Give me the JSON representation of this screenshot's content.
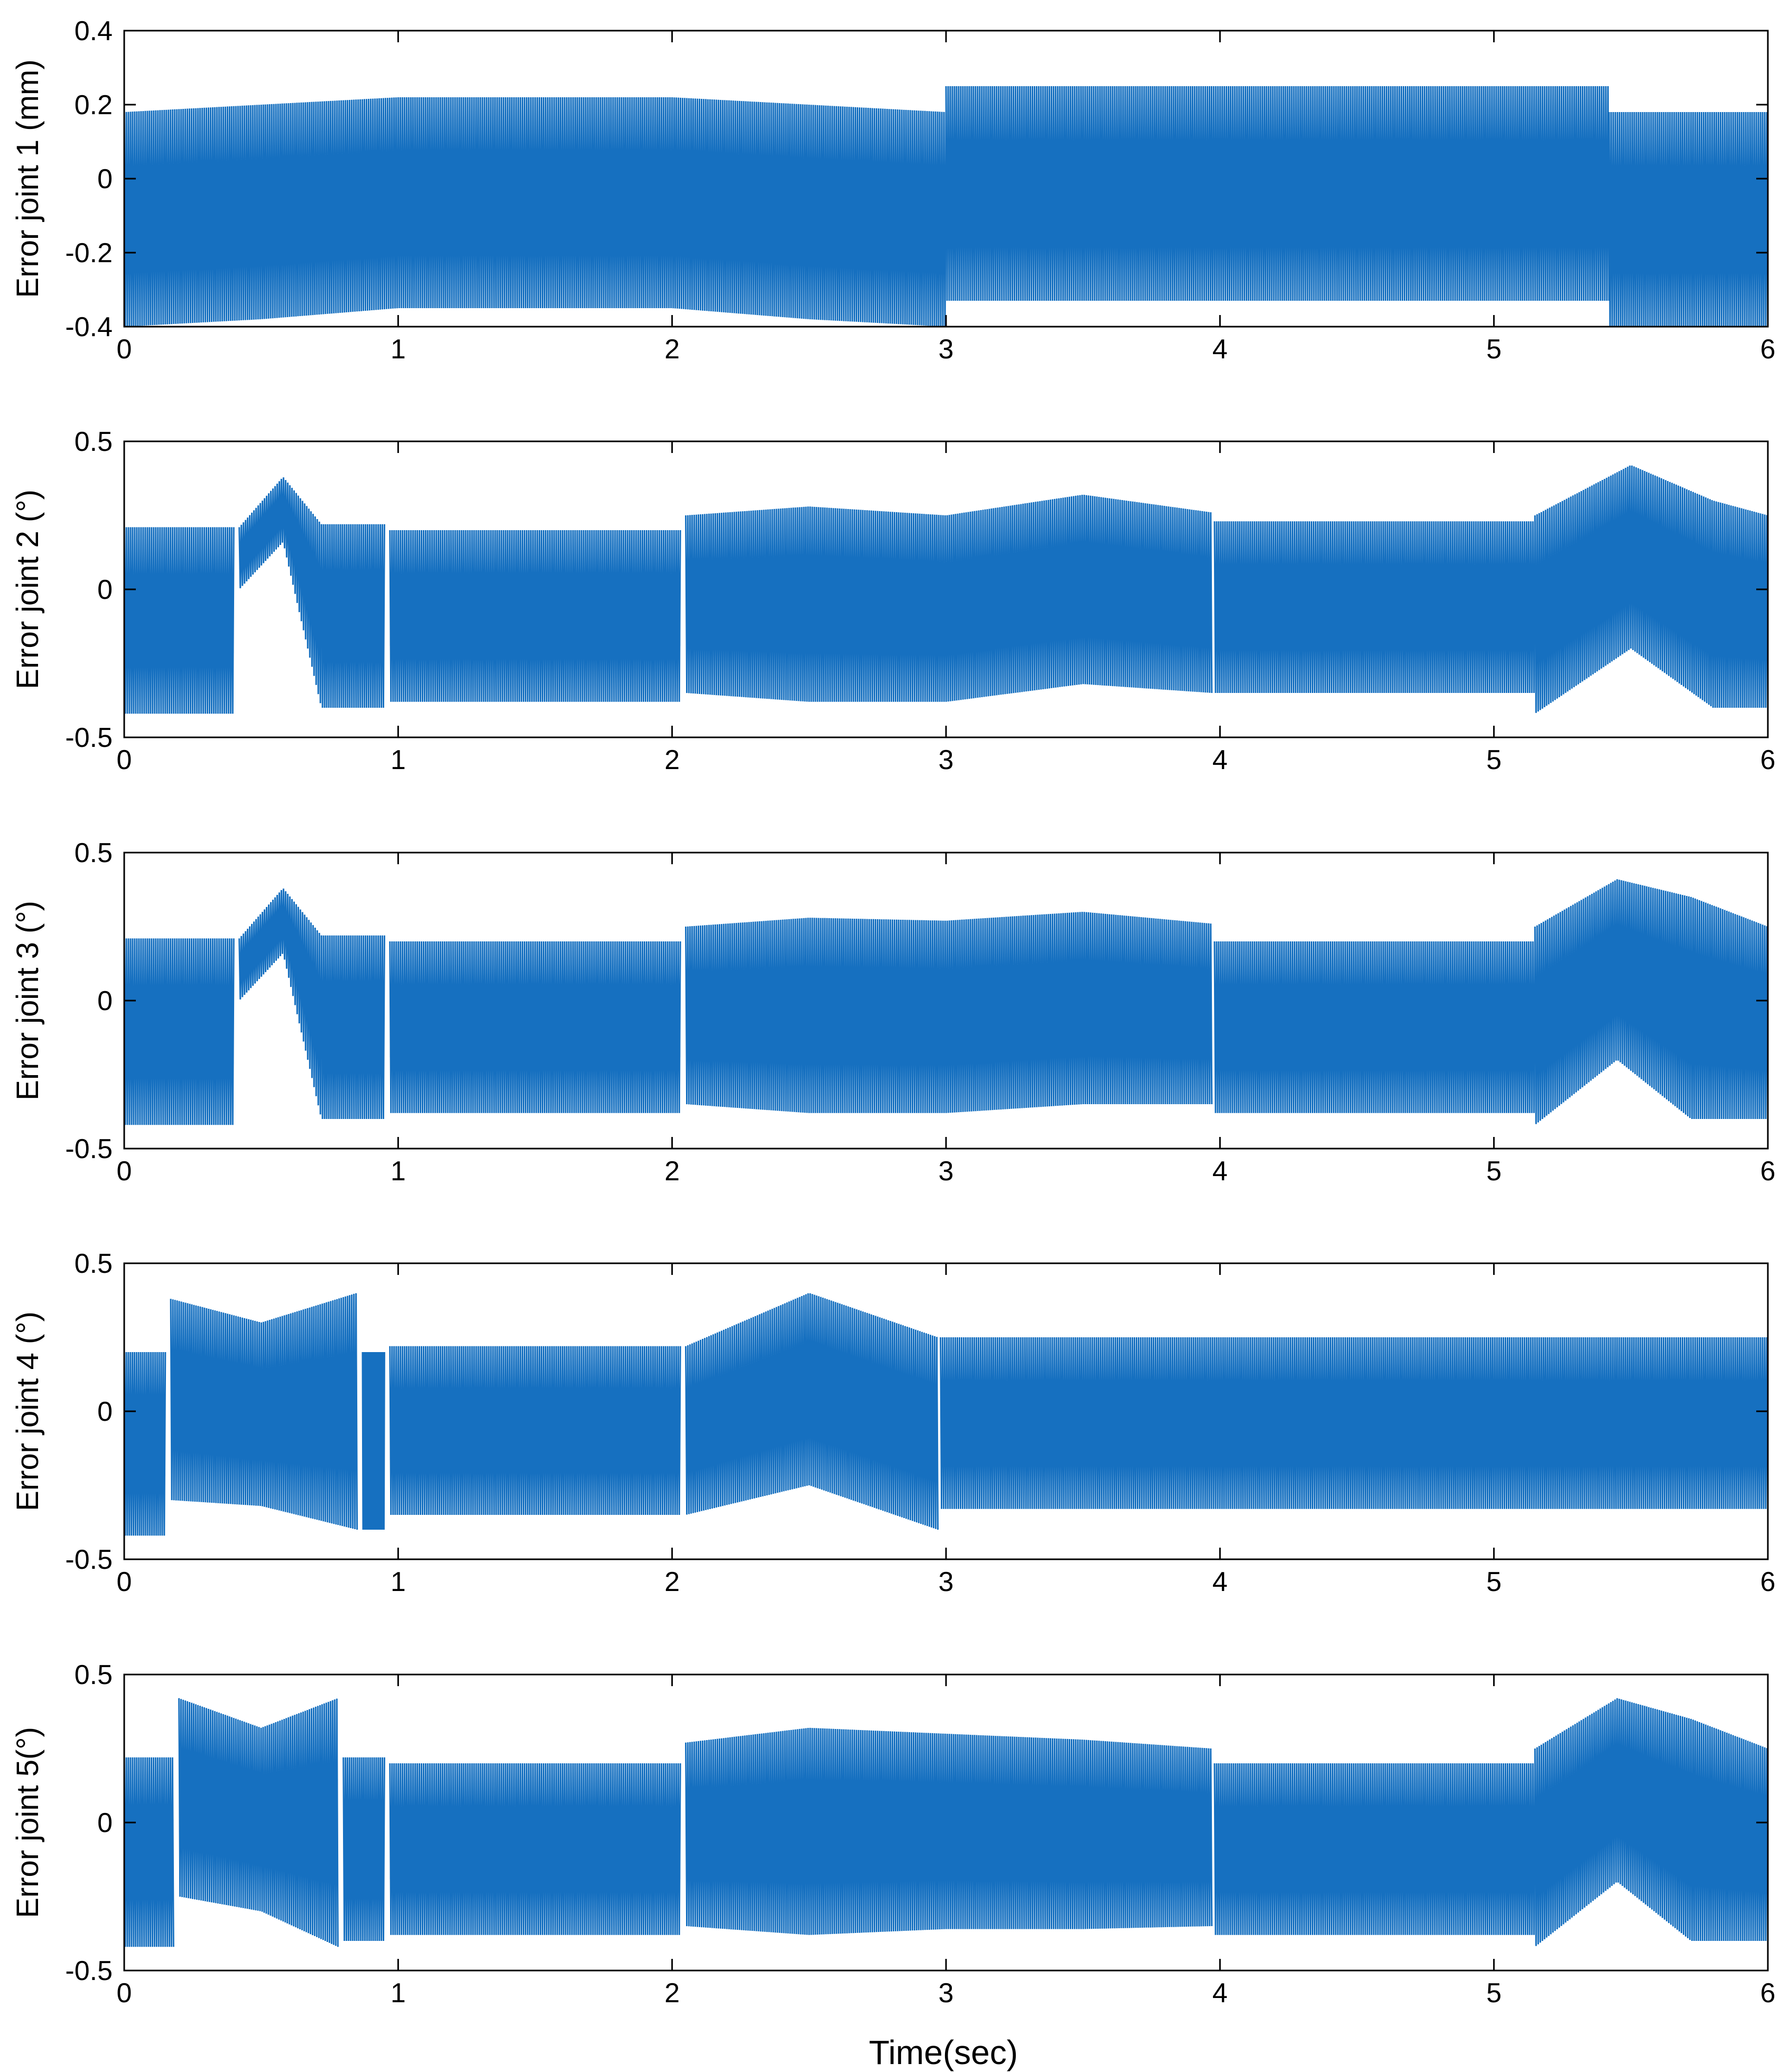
{
  "figure": {
    "xlabel": "Time(sec)"
  },
  "colors": {
    "series": "#1670c0",
    "axes": "#000000",
    "background": "#ffffff"
  },
  "chart_data": [
    {
      "type": "line",
      "ylabel": "Error joint 1 (mm)",
      "xlim": [
        0,
        6
      ],
      "ylim": [
        -0.4,
        0.4
      ],
      "xticks": [
        "0",
        "1",
        "2",
        "3",
        "4",
        "5",
        "6"
      ],
      "yticks": [
        "-0.4",
        "-0.2",
        "0",
        "0.2",
        "0.4"
      ],
      "grid": false,
      "series": [
        {
          "style": "dense oscillation",
          "segments": [
            {
              "x": [
                0,
                0.5,
                1.0,
                2.0,
                2.5,
                3.0
              ],
              "upper": [
                0.18,
                0.2,
                0.22,
                0.22,
                0.2,
                0.18
              ],
              "lower": [
                -0.4,
                -0.38,
                -0.35,
                -0.35,
                -0.38,
                -0.4
              ]
            },
            {
              "x": [
                3.0,
                5.42
              ],
              "upper": [
                0.25,
                0.25
              ],
              "lower": [
                -0.33,
                -0.33
              ]
            },
            {
              "x": [
                5.42,
                6.0
              ],
              "upper": [
                0.18,
                0.18
              ],
              "lower": [
                -0.4,
                -0.4
              ]
            }
          ]
        }
      ]
    },
    {
      "type": "line",
      "ylabel": "Error joint 2 (°)",
      "xlim": [
        0,
        6
      ],
      "ylim": [
        -0.5,
        0.5
      ],
      "xticks": [
        "0",
        "1",
        "2",
        "3",
        "4",
        "5",
        "6"
      ],
      "yticks": [
        "-0.5",
        "0",
        "0.5"
      ],
      "grid": false,
      "series": [
        {
          "style": "dense oscillation",
          "segments": [
            {
              "x": [
                0,
                0.4
              ],
              "upper": [
                0.21,
                0.21
              ],
              "lower": [
                -0.42,
                -0.42
              ]
            },
            {
              "x": [
                0.42,
                0.58,
                0.72
              ],
              "upper": [
                0.21,
                0.38,
                0.22
              ],
              "lower": [
                0.0,
                0.16,
                -0.4
              ]
            },
            {
              "x": [
                0.72,
                0.95
              ],
              "upper": [
                0.22,
                0.22
              ],
              "lower": [
                -0.4,
                -0.4
              ]
            },
            {
              "x": [
                0.97,
                2.03
              ],
              "upper": [
                0.2,
                0.2
              ],
              "lower": [
                -0.38,
                -0.38
              ]
            },
            {
              "x": [
                2.05,
                2.5,
                3.0,
                3.5,
                3.97
              ],
              "upper": [
                0.25,
                0.28,
                0.25,
                0.32,
                0.26
              ],
              "lower": [
                -0.35,
                -0.38,
                -0.38,
                -0.32,
                -0.35
              ]
            },
            {
              "x": [
                3.98,
                5.15
              ],
              "upper": [
                0.23,
                0.23
              ],
              "lower": [
                -0.35,
                -0.35
              ]
            },
            {
              "x": [
                5.15,
                5.5,
                5.8,
                6.0
              ],
              "upper": [
                0.25,
                0.42,
                0.3,
                0.25
              ],
              "lower": [
                -0.42,
                -0.2,
                -0.4,
                -0.4
              ]
            }
          ]
        }
      ]
    },
    {
      "type": "line",
      "ylabel": "Error joint 3 (°)",
      "xlim": [
        0,
        6
      ],
      "ylim": [
        -0.5,
        0.5
      ],
      "xticks": [
        "0",
        "1",
        "2",
        "3",
        "4",
        "5",
        "6"
      ],
      "yticks": [
        "-0.5",
        "0",
        "0.5"
      ],
      "grid": false,
      "series": [
        {
          "style": "dense oscillation",
          "segments": [
            {
              "x": [
                0,
                0.4
              ],
              "upper": [
                0.21,
                0.21
              ],
              "lower": [
                -0.42,
                -0.42
              ]
            },
            {
              "x": [
                0.42,
                0.58,
                0.72
              ],
              "upper": [
                0.21,
                0.38,
                0.22
              ],
              "lower": [
                0.0,
                0.16,
                -0.4
              ]
            },
            {
              "x": [
                0.72,
                0.95
              ],
              "upper": [
                0.22,
                0.22
              ],
              "lower": [
                -0.4,
                -0.4
              ]
            },
            {
              "x": [
                0.97,
                2.03
              ],
              "upper": [
                0.2,
                0.2
              ],
              "lower": [
                -0.38,
                -0.38
              ]
            },
            {
              "x": [
                2.05,
                2.5,
                3.0,
                3.5,
                3.97
              ],
              "upper": [
                0.25,
                0.28,
                0.27,
                0.3,
                0.26
              ],
              "lower": [
                -0.35,
                -0.38,
                -0.38,
                -0.35,
                -0.35
              ]
            },
            {
              "x": [
                3.98,
                5.15
              ],
              "upper": [
                0.2,
                0.2
              ],
              "lower": [
                -0.38,
                -0.38
              ]
            },
            {
              "x": [
                5.15,
                5.45,
                5.72,
                6.0
              ],
              "upper": [
                0.25,
                0.41,
                0.35,
                0.25
              ],
              "lower": [
                -0.42,
                -0.2,
                -0.4,
                -0.4
              ]
            }
          ]
        }
      ]
    },
    {
      "type": "line",
      "ylabel": "Error joint 4 (°)",
      "xlim": [
        0,
        6
      ],
      "ylim": [
        -0.5,
        0.5
      ],
      "xticks": [
        "0",
        "1",
        "2",
        "3",
        "4",
        "5",
        "6"
      ],
      "yticks": [
        "-0.5",
        "0",
        "0.5"
      ],
      "grid": false,
      "series": [
        {
          "style": "dense oscillation",
          "segments": [
            {
              "x": [
                0,
                0.15
              ],
              "upper": [
                0.2,
                0.2
              ],
              "lower": [
                -0.42,
                -0.42
              ]
            },
            {
              "x": [
                0.17,
                0.5,
                0.85
              ],
              "upper": [
                0.38,
                0.3,
                0.4
              ],
              "lower": [
                -0.3,
                -0.32,
                -0.4
              ]
            },
            {
              "x": [
                0.87,
                0.95
              ],
              "upper": [
                0.2,
                0.2
              ],
              "lower": [
                -0.4,
                -0.4
              ]
            },
            {
              "x": [
                0.97,
                2.03
              ],
              "upper": [
                0.22,
                0.22
              ],
              "lower": [
                -0.35,
                -0.35
              ]
            },
            {
              "x": [
                2.05,
                2.5,
                2.97
              ],
              "upper": [
                0.22,
                0.4,
                0.25
              ],
              "lower": [
                -0.35,
                -0.25,
                -0.4
              ]
            },
            {
              "x": [
                2.98,
                6.0
              ],
              "upper": [
                0.25,
                0.25
              ],
              "lower": [
                -0.33,
                -0.33
              ]
            }
          ]
        }
      ]
    },
    {
      "type": "line",
      "ylabel": "Error joint 5(°)",
      "xlim": [
        0,
        6
      ],
      "ylim": [
        -0.5,
        0.5
      ],
      "xticks": [
        "0",
        "1",
        "2",
        "3",
        "4",
        "5",
        "6"
      ],
      "yticks": [
        "-0.5",
        "0",
        "0.5"
      ],
      "grid": false,
      "series": [
        {
          "style": "dense oscillation",
          "segments": [
            {
              "x": [
                0,
                0.18
              ],
              "upper": [
                0.22,
                0.22
              ],
              "lower": [
                -0.42,
                -0.42
              ]
            },
            {
              "x": [
                0.2,
                0.5,
                0.78
              ],
              "upper": [
                0.42,
                0.32,
                0.42
              ],
              "lower": [
                -0.25,
                -0.3,
                -0.42
              ]
            },
            {
              "x": [
                0.8,
                0.95
              ],
              "upper": [
                0.22,
                0.22
              ],
              "lower": [
                -0.4,
                -0.4
              ]
            },
            {
              "x": [
                0.97,
                2.03
              ],
              "upper": [
                0.2,
                0.2
              ],
              "lower": [
                -0.38,
                -0.38
              ]
            },
            {
              "x": [
                2.05,
                2.5,
                3.0,
                3.5,
                3.97
              ],
              "upper": [
                0.27,
                0.32,
                0.3,
                0.28,
                0.25
              ],
              "lower": [
                -0.35,
                -0.38,
                -0.36,
                -0.36,
                -0.35
              ]
            },
            {
              "x": [
                3.98,
                5.15
              ],
              "upper": [
                0.2,
                0.2
              ],
              "lower": [
                -0.38,
                -0.38
              ]
            },
            {
              "x": [
                5.15,
                5.45,
                5.72,
                6.0
              ],
              "upper": [
                0.25,
                0.42,
                0.35,
                0.25
              ],
              "lower": [
                -0.42,
                -0.2,
                -0.4,
                -0.4
              ]
            }
          ]
        }
      ]
    }
  ]
}
